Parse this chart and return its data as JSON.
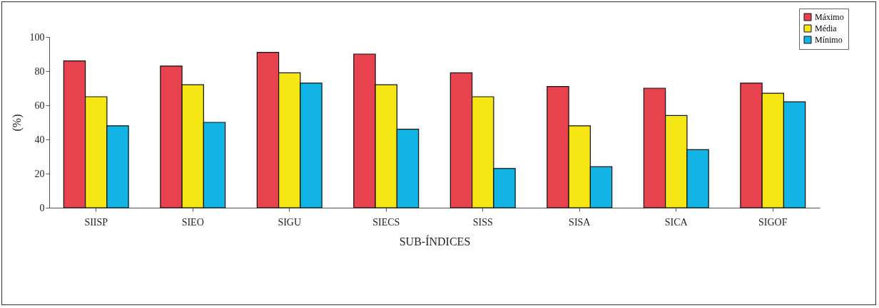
{
  "chart_data": {
    "type": "bar",
    "xlabel": "SUB-ÍNDICES",
    "ylabel": "(%)",
    "categories": [
      "SIISP",
      "SIEO",
      "SIGU",
      "SIECS",
      "SISS",
      "SISA",
      "SICA",
      "SIGOF"
    ],
    "series": [
      {
        "name": "Máximo",
        "color": "#e8424f",
        "values": [
          86,
          83,
          91,
          90,
          79,
          71,
          70,
          73
        ]
      },
      {
        "name": "Média",
        "color": "#f5e614",
        "values": [
          65,
          72,
          79,
          72,
          65,
          48,
          54,
          67
        ]
      },
      {
        "name": "Mínimo",
        "color": "#12b4e6",
        "values": [
          48,
          50,
          73,
          46,
          23,
          24,
          34,
          62
        ]
      }
    ],
    "ylim": [
      0,
      100
    ],
    "yticks": [
      0,
      20,
      40,
      60,
      80,
      100
    ],
    "grid": false,
    "legend": "top right"
  }
}
